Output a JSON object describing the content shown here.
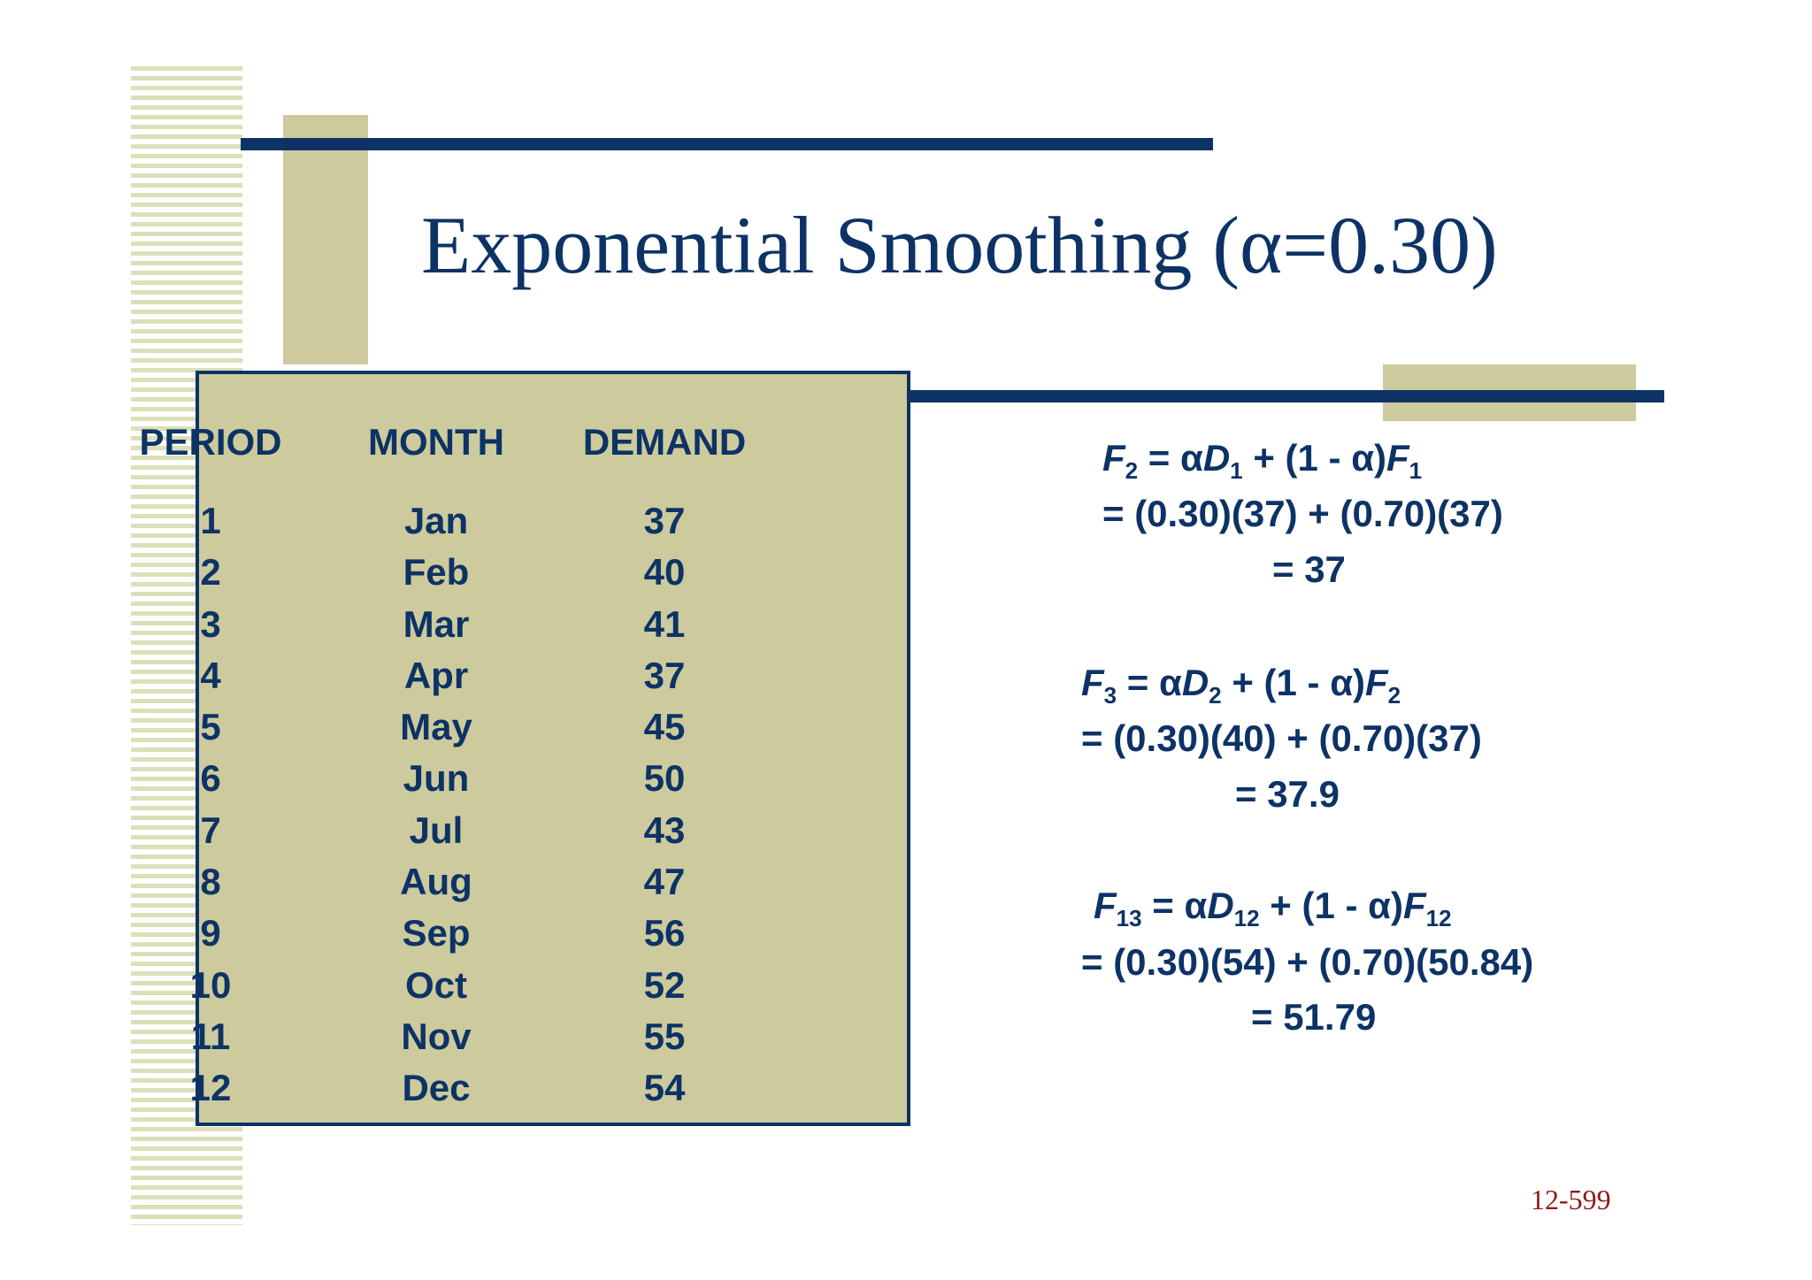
{
  "slide": {
    "title": "Exponential Smoothing (α=0.30)",
    "page_number": "12-599"
  },
  "table": {
    "headers": [
      "PERIOD",
      "MONTH",
      "DEMAND"
    ],
    "rows": [
      [
        "1",
        "Jan",
        "37"
      ],
      [
        "2",
        "Feb",
        "40"
      ],
      [
        "3",
        "Mar",
        "41"
      ],
      [
        "4",
        "Apr",
        "37"
      ],
      [
        "5",
        "May",
        "45"
      ],
      [
        "6",
        "Jun",
        "50"
      ],
      [
        "7",
        "Jul",
        "43"
      ],
      [
        "8",
        "Aug",
        "47"
      ],
      [
        "9",
        "Sep",
        "56"
      ],
      [
        "10",
        "Oct",
        "52"
      ],
      [
        "11",
        "Nov",
        "55"
      ],
      [
        "12",
        "Dec",
        "54"
      ]
    ]
  },
  "equations": [
    {
      "f": "F",
      "f_sub": "2",
      "eq": " = α",
      "d": "D",
      "d_sub": "1",
      "mid": " + (1 - α)",
      "f2": "F",
      "f2_sub": "1",
      "line2": "= (0.30)(37) + (0.70)(37)",
      "line3": "= 37"
    },
    {
      "f": "F",
      "f_sub": "3",
      "eq": " = α",
      "d": "D",
      "d_sub": "2",
      "mid": " + (1 - α)",
      "f2": "F",
      "f2_sub": "2",
      "line2": "= (0.30)(40) + (0.70)(37)",
      "line3": "= 37.9"
    },
    {
      "f": "F",
      "f_sub": "13",
      "eq": " = α",
      "d": "D",
      "d_sub": "12",
      "mid": " + (1 - α)",
      "f2": "F",
      "f2_sub": "12",
      "line2": "= (0.30)(54) + (0.70)(50.84)",
      "line3": "= 51.79"
    }
  ]
}
